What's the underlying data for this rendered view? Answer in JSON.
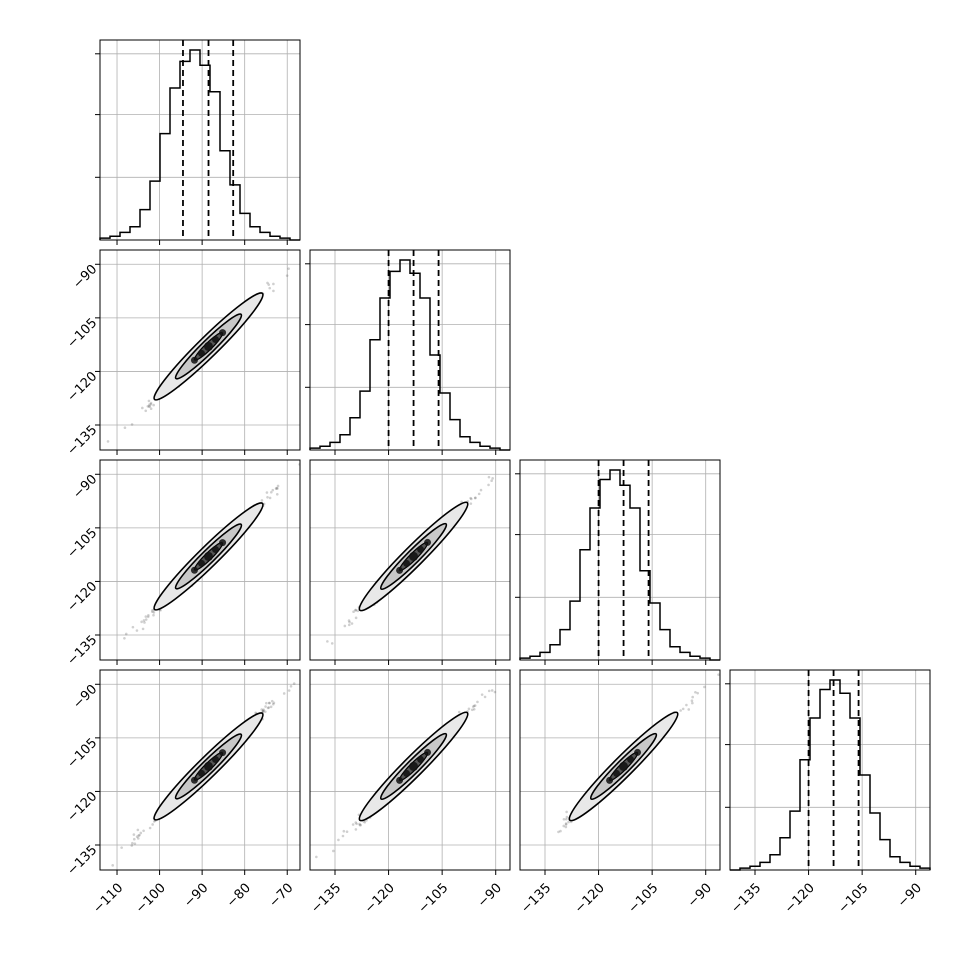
{
  "chart_data": {
    "type": "corner",
    "title": "",
    "parameters": 4,
    "grid": true,
    "histogram": {
      "bins": 20,
      "line_style": "step",
      "quantile_line_style": "dashed",
      "note": "relative bin heights (peak = 1), no y tick labels shown"
    },
    "marginals": [
      {
        "range": [
          -114,
          -67
        ],
        "ticks": [
          -110,
          -100,
          -90,
          -80,
          -70
        ],
        "tick_labels": [
          "−110",
          "−100",
          "−90",
          "−80",
          "−70"
        ],
        "quantiles": [
          -94.5,
          -88.5,
          -82.7
        ],
        "bin_heights": [
          0.01,
          0.02,
          0.04,
          0.07,
          0.16,
          0.31,
          0.56,
          0.8,
          0.94,
          1.0,
          0.92,
          0.78,
          0.47,
          0.29,
          0.14,
          0.07,
          0.04,
          0.02,
          0.01,
          0.0
        ]
      },
      {
        "range": [
          -142,
          -86
        ],
        "ticks": [
          -135,
          -120,
          -105,
          -90
        ],
        "tick_labels": [
          "−135",
          "−120",
          "−105",
          "−90"
        ],
        "quantiles": [
          -120,
          -113,
          -106
        ],
        "bin_heights": [
          0.01,
          0.02,
          0.04,
          0.08,
          0.17,
          0.31,
          0.58,
          0.8,
          0.94,
          1.0,
          0.93,
          0.8,
          0.5,
          0.3,
          0.16,
          0.07,
          0.04,
          0.02,
          0.01,
          0.0
        ]
      },
      {
        "range": [
          -142,
          -86
        ],
        "ticks": [
          -135,
          -120,
          -105,
          -90
        ],
        "tick_labels": [
          "−135",
          "−120",
          "−105",
          "−90"
        ],
        "quantiles": [
          -120,
          -113,
          -106
        ],
        "bin_heights": [
          0.01,
          0.02,
          0.04,
          0.08,
          0.16,
          0.31,
          0.58,
          0.8,
          0.95,
          1.0,
          0.92,
          0.8,
          0.47,
          0.3,
          0.16,
          0.07,
          0.04,
          0.02,
          0.01,
          0.0
        ]
      },
      {
        "range": [
          -142,
          -86
        ],
        "ticks": [
          -135,
          -120,
          -105,
          -90
        ],
        "tick_labels": [
          "−135",
          "−120",
          "−105",
          "−90"
        ],
        "quantiles": [
          -120,
          -113,
          -106
        ],
        "bin_heights": [
          0.0,
          0.01,
          0.02,
          0.04,
          0.08,
          0.17,
          0.31,
          0.58,
          0.8,
          0.95,
          1.0,
          0.93,
          0.8,
          0.5,
          0.3,
          0.16,
          0.07,
          0.04,
          0.02,
          0.01
        ]
      }
    ],
    "pairs": [
      {
        "row": 1,
        "col": 0,
        "center": [
          -88.5,
          -113
        ],
        "slope": 1.17,
        "correlation": 0.99
      },
      {
        "row": 2,
        "col": 0,
        "center": [
          -88.5,
          -113
        ],
        "slope": 1.17,
        "correlation": 0.99
      },
      {
        "row": 2,
        "col": 1,
        "center": [
          -113,
          -113
        ],
        "slope": 1.0,
        "correlation": 0.99
      },
      {
        "row": 3,
        "col": 0,
        "center": [
          -88.5,
          -113
        ],
        "slope": 1.17,
        "correlation": 0.99
      },
      {
        "row": 3,
        "col": 1,
        "center": [
          -113,
          -113
        ],
        "slope": 1.0,
        "correlation": 0.99
      },
      {
        "row": 3,
        "col": 2,
        "center": [
          -113,
          -113
        ],
        "slope": 1.0,
        "correlation": 0.99
      }
    ],
    "colors": {
      "line": "#000000",
      "grid": "#b0b0b0",
      "contour_fill": "#e8e8e8",
      "points": "#555555"
    }
  }
}
